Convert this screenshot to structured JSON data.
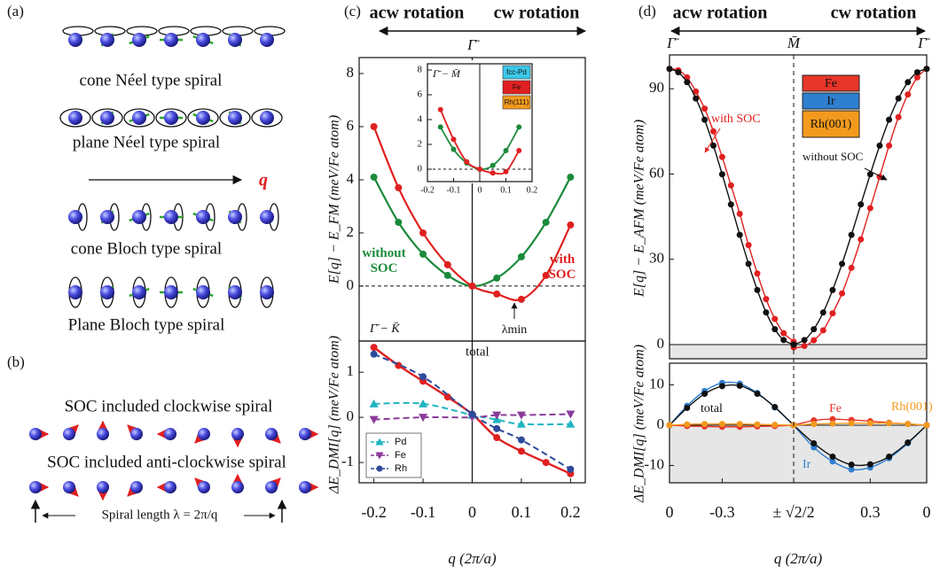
{
  "panel_a": {
    "label": "(a)",
    "rows": [
      "cone Néel type spiral",
      "plane Néel type spiral",
      "cone Bloch type spiral",
      "Plane Bloch type spiral"
    ],
    "q": "q"
  },
  "panel_b": {
    "label": "(b)",
    "rows": [
      "SOC included clockwise spiral",
      "SOC included anti-clockwise spiral"
    ],
    "spiral_length": "Spiral length λ = 2π/q"
  },
  "panel_c": {
    "label": "(c)",
    "left": "acw rotation",
    "right": "cw rotation",
    "point": "Γ̄"
  },
  "panel_d": {
    "label": "(d)",
    "left": "acw rotation",
    "right": "cw rotation",
    "points": [
      "Γ̄",
      "M̄",
      "Γ̄"
    ]
  },
  "chart_data": [
    {
      "type": "line",
      "ylabel": "E[q] − E_FM (meV/Fe atom)",
      "direction_label": "Γ̄ − K̄",
      "lambda_label": "λmin",
      "xlim": [
        -0.23,
        0.23
      ],
      "ylim": [
        -2.07,
        8.6
      ],
      "yticks": [
        0,
        2,
        4,
        6,
        8
      ],
      "series": [
        {
          "name": "without SOC",
          "color": "#1a8a3a",
          "x": [
            -0.2,
            -0.15,
            -0.1,
            -0.05,
            0,
            0.05,
            0.1,
            0.15,
            0.2
          ],
          "values": [
            4.1,
            2.4,
            1.2,
            0.4,
            0,
            0.3,
            1.1,
            2.4,
            4.1
          ]
        },
        {
          "name": "with SOC",
          "color": "#e02020",
          "x": [
            -0.2,
            -0.15,
            -0.1,
            -0.05,
            0,
            0.05,
            0.1,
            0.15,
            0.2
          ],
          "values": [
            6.0,
            3.7,
            2.0,
            0.8,
            0,
            -0.3,
            -0.5,
            0.4,
            2.3
          ]
        }
      ]
    },
    {
      "type": "line",
      "direction_label": "Γ̄ − M̄",
      "xlim": [
        -0.2,
        0.2
      ],
      "ylim": [
        -1,
        8.5
      ],
      "xticks": [
        -0.2,
        -0.1,
        0,
        0.1,
        0.2
      ],
      "yticks": [
        0,
        2,
        4,
        6,
        8
      ],
      "layers": [
        {
          "label": "fcc-Pd",
          "color": "#3cc8e8"
        },
        {
          "label": "Fe",
          "color": "#e02020"
        },
        {
          "label": "Rh(111)",
          "color": "#f39a1e"
        }
      ],
      "series": [
        {
          "color": "#1a8a3a",
          "x": [
            -0.15,
            -0.1,
            -0.05,
            0,
            0.05,
            0.1,
            0.15
          ],
          "values": [
            3.4,
            1.6,
            0.5,
            0,
            0.3,
            1.5,
            3.4
          ]
        },
        {
          "color": "#e02020",
          "x": [
            -0.15,
            -0.1,
            -0.05,
            0,
            0.05,
            0.1,
            0.15
          ],
          "values": [
            4.8,
            2.4,
            0.6,
            0,
            -0.3,
            -0.2,
            1.5
          ]
        }
      ]
    },
    {
      "type": "line",
      "ylabel": "ΔE_DMI[q] (meV/Fe atom)",
      "xlabel": "q (2π/a)",
      "xlim": [
        -0.23,
        0.23
      ],
      "ylim": [
        -1.45,
        1.69
      ],
      "xticks": [
        -0.2,
        -0.1,
        0,
        0.1,
        0.2
      ],
      "yticks": [
        -1,
        0,
        1
      ],
      "legend": "lower left",
      "series": [
        {
          "name": "Pd",
          "color": "#1fb5c0",
          "marker": "triangle-up",
          "x": [
            -0.2,
            -0.1,
            0,
            0.05,
            0.1,
            0.2
          ],
          "values": [
            0.3,
            0.3,
            0.05,
            -0.05,
            -0.15,
            -0.15
          ]
        },
        {
          "name": "Fe",
          "color": "#8b3a9a",
          "marker": "triangle-down",
          "x": [
            -0.2,
            -0.1,
            0,
            0.05,
            0.1,
            0.2
          ],
          "values": [
            -0.05,
            0,
            0,
            0.05,
            0.05,
            0.07
          ]
        },
        {
          "name": "Rh",
          "color": "#2d4a9a",
          "marker": "circle",
          "x": [
            -0.2,
            -0.1,
            0,
            0.05,
            0.1,
            0.2
          ],
          "values": [
            1.4,
            0.9,
            0.07,
            -0.25,
            -0.5,
            -1.15
          ]
        }
      ],
      "total": {
        "name": "total",
        "color": "#e02020",
        "x": [
          -0.2,
          -0.15,
          -0.1,
          -0.05,
          0,
          0.05,
          0.1,
          0.15,
          0.2
        ],
        "values": [
          1.55,
          1.15,
          0.8,
          0.45,
          0.07,
          -0.45,
          -0.75,
          -1.0,
          -1.25
        ]
      }
    },
    {
      "type": "line",
      "ylabel": "E[q] − E_AFM (meV/Fe atom)",
      "xlim": [
        [
          0,
          -0.7071
        ],
        [
          0.7071,
          0
        ]
      ],
      "ylim": [
        -5,
        101.9
      ],
      "yticks": [
        0,
        30,
        60,
        90
      ],
      "layers": [
        {
          "label": "Fe",
          "color": "#e8352a"
        },
        {
          "label": "Ir",
          "color": "#2f7fd0"
        },
        {
          "label": "Rh(001)",
          "color": "#f39a1e"
        }
      ],
      "series": [
        {
          "name": "with SOC",
          "color": "#e02020",
          "segments": [
            {
              "x": [
                0,
                -0.05,
                -0.1,
                -0.15,
                -0.2,
                -0.25,
                -0.3,
                -0.35,
                -0.4,
                -0.45,
                -0.5,
                -0.55,
                -0.6,
                -0.65,
                -0.7071
              ],
              "values": [
                97,
                96.5,
                94,
                89,
                83,
                75,
                66,
                56,
                46,
                35,
                25,
                16,
                9,
                4,
                1
              ]
            },
            {
              "x": [
                0.7071,
                0.65,
                0.6,
                0.55,
                0.5,
                0.45,
                0.4,
                0.35,
                0.3,
                0.25,
                0.2,
                0.15,
                0.1,
                0.05,
                0
              ],
              "values": [
                -1,
                -0.5,
                1.5,
                5,
                11,
                18,
                27,
                37,
                48,
                59,
                70,
                80,
                88,
                94,
                97
              ]
            }
          ]
        },
        {
          "name": "without SOC",
          "color": "#111111",
          "segments": [
            {
              "x": [
                0,
                -0.05,
                -0.1,
                -0.15,
                -0.2,
                -0.25,
                -0.3,
                -0.35,
                -0.4,
                -0.45,
                -0.5,
                -0.55,
                -0.6,
                -0.65,
                -0.7071
              ],
              "values": [
                97,
                95.8,
                92.3,
                86.6,
                79.1,
                70.0,
                59.9,
                49.3,
                38.6,
                28.4,
                19.2,
                11.3,
                5.4,
                1.6,
                0
              ]
            },
            {
              "x": [
                0.7071,
                0.65,
                0.6,
                0.55,
                0.5,
                0.45,
                0.4,
                0.35,
                0.3,
                0.25,
                0.2,
                0.15,
                0.1,
                0.05,
                0
              ],
              "values": [
                0,
                1.6,
                5.4,
                11.3,
                19.2,
                28.4,
                38.6,
                49.3,
                59.9,
                70.0,
                79.1,
                86.6,
                92.3,
                95.8,
                97
              ]
            }
          ]
        }
      ]
    },
    {
      "type": "line",
      "ylabel": "ΔE_DMI[q] (meV/Fe atom)",
      "xlabel": "q (2π/a)",
      "xlim": [
        [
          0,
          -0.7071
        ],
        [
          0.7071,
          0
        ]
      ],
      "ylim": [
        -14.3,
        15.4
      ],
      "yticks": [
        -10,
        0,
        10
      ],
      "xticks": [
        [
          0,
          -0.3,
          {
            "value": -0.7071,
            "label": "± √2/2"
          }
        ],
        [
          0.3,
          0
        ]
      ],
      "series": [
        {
          "name": "Ir",
          "color": "#2f7fd0",
          "segments": [
            {
              "x": [
                0,
                -0.1,
                -0.2,
                -0.3,
                -0.4,
                -0.5,
                -0.6,
                -0.7071
              ],
              "values": [
                0,
                4.8,
                8.5,
                10.5,
                10.3,
                8.0,
                4.4,
                0
              ]
            },
            {
              "x": [
                0.7071,
                0.6,
                0.5,
                0.4,
                0.3,
                0.2,
                0.1,
                0
              ],
              "values": [
                0,
                -5.5,
                -9,
                -11,
                -10.5,
                -8.2,
                -4.5,
                0
              ]
            }
          ]
        },
        {
          "name": "total",
          "color": "#111111",
          "segments": [
            {
              "x": [
                0,
                -0.1,
                -0.2,
                -0.3,
                -0.4,
                -0.5,
                -0.6,
                -0.7071
              ],
              "values": [
                0,
                4.3,
                7.8,
                9.7,
                9.8,
                7.8,
                4.5,
                0
              ]
            },
            {
              "x": [
                0.7071,
                0.6,
                0.5,
                0.4,
                0.3,
                0.2,
                0.1,
                0
              ],
              "values": [
                0,
                -4.5,
                -7.8,
                -9.8,
                -9.7,
                -7.8,
                -4.3,
                0
              ]
            }
          ]
        },
        {
          "name": "Fe",
          "color": "#e8352a",
          "segments": [
            {
              "x": [
                0,
                -0.1,
                -0.2,
                -0.3,
                -0.4,
                -0.5,
                -0.6,
                -0.7071
              ],
              "values": [
                0,
                -0.2,
                -0.3,
                -0.4,
                -0.4,
                -0.3,
                -0.2,
                0
              ]
            },
            {
              "x": [
                0.7071,
                0.6,
                0.5,
                0.4,
                0.3,
                0.2,
                0.1,
                0
              ],
              "values": [
                0,
                1.2,
                1.5,
                1.3,
                1,
                0.6,
                0.3,
                0
              ]
            }
          ]
        },
        {
          "name": "Rh(001)",
          "color": "#f39a1e",
          "segments": [
            {
              "x": [
                0,
                -0.1,
                -0.2,
                -0.3,
                -0.4,
                -0.5,
                -0.6,
                -0.7071
              ],
              "values": [
                0,
                0.2,
                0.3,
                0.3,
                0.3,
                0.2,
                0.1,
                0
              ]
            },
            {
              "x": [
                0.7071,
                0.6,
                0.5,
                0.4,
                0.3,
                0.2,
                0.1,
                0
              ],
              "values": [
                0,
                0.3,
                0.4,
                0.5,
                0.5,
                0.5,
                0.3,
                0
              ]
            }
          ]
        }
      ]
    }
  ]
}
